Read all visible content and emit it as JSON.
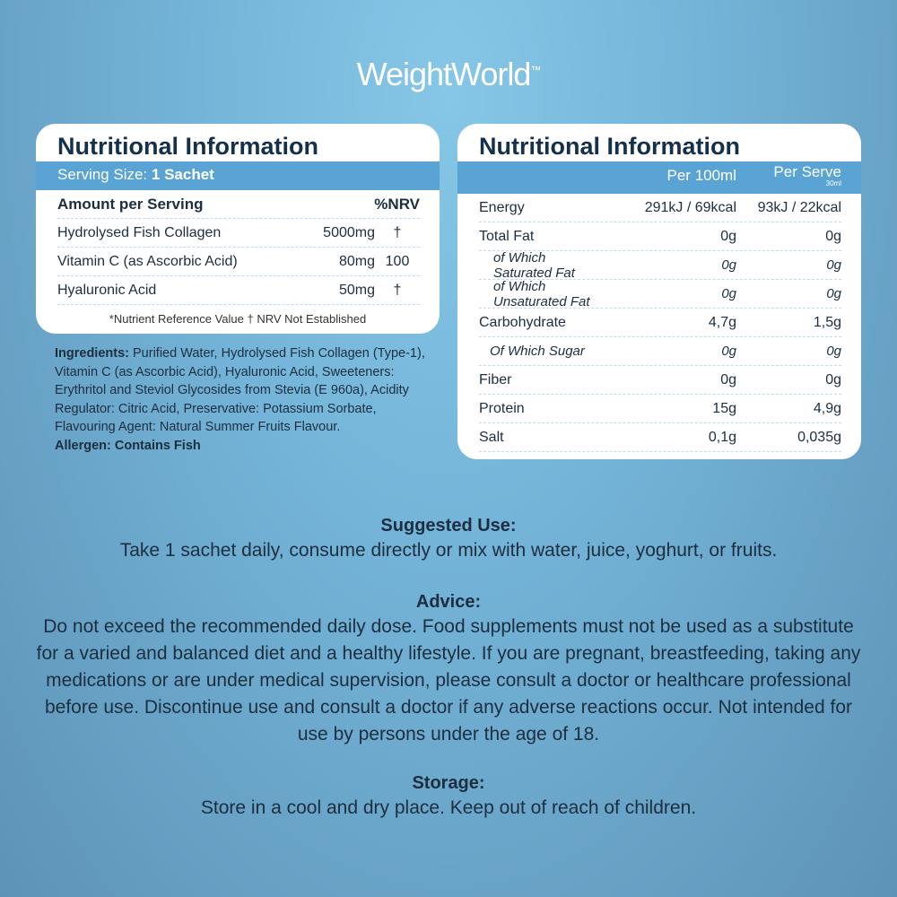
{
  "brand": {
    "name": "WeightWorld",
    "tm": "™"
  },
  "left_card": {
    "title": "Nutritional Information",
    "serving_label": "Serving Size:",
    "serving_value": "1 Sachet",
    "header": {
      "amount": "Amount per Serving",
      "nrv": "%NRV"
    },
    "rows": [
      {
        "name": "Hydrolysed Fish Collagen",
        "value": "5000mg",
        "nrv": "†"
      },
      {
        "name": "Vitamin C (as Ascorbic Acid)",
        "value": "80mg",
        "nrv": "100"
      },
      {
        "name": "Hyaluronic Acid",
        "value": "50mg",
        "nrv": "†"
      }
    ],
    "footnote": "*Nutrient Reference Value † NRV Not Established"
  },
  "right_card": {
    "title": "Nutritional Information",
    "col1": "Per 100ml",
    "col2": "Per Serve",
    "col2_sub": "30ml",
    "rows": [
      {
        "name": "Energy",
        "v1": "291kJ / 69kcal",
        "v2": "93kJ / 22kcal"
      },
      {
        "name": "Total Fat",
        "v1": "0g",
        "v2": "0g"
      },
      {
        "name": "of Which Saturated Fat",
        "v1": "0g",
        "v2": "0g"
      },
      {
        "name": "of Which Unsaturated Fat",
        "v1": "0g",
        "v2": "0g"
      },
      {
        "name": "Carbohydrate",
        "v1": "4,7g",
        "v2": "1,5g"
      },
      {
        "name": "Of Which Sugar",
        "v1": "0g",
        "v2": "0g"
      },
      {
        "name": "Fiber",
        "v1": "0g",
        "v2": "0g"
      },
      {
        "name": "Protein",
        "v1": "15g",
        "v2": "4,9g"
      },
      {
        "name": "Salt",
        "v1": "0,1g",
        "v2": "0,035g"
      }
    ]
  },
  "ingredients": {
    "label": "Ingredients:",
    "text": " Purified Water, Hydrolysed Fish Collagen (Type-1), Vitamin C (as Ascorbic Acid), Hyaluronic Acid, Sweeteners: Erythritol and Steviol Glycosides from Stevia (E 960a), Acidity Regulator: Citric Acid, Preservative: Potassium Sorbate, Flavouring Agent: Natural Summer Fruits Flavour.",
    "allergen": "Allergen: Contains Fish"
  },
  "suggested": {
    "title": "Suggested Use:",
    "text": "Take 1 sachet daily, consume directly or mix with water, juice, yoghurt, or fruits."
  },
  "advice": {
    "title": "Advice:",
    "text": "Do not exceed the recommended daily dose. Food supplements must not be used as a substitute for a varied and balanced diet and a healthy lifestyle. If you are pregnant, breastfeeding, taking any medications or are under medical supervision, please consult a doctor or healthcare professional before use. Discontinue use and consult a doctor if any adverse reactions occur. Not intended for use by persons under the age of 18."
  },
  "storage": {
    "title": "Storage:",
    "text": "Store in a cool and dry place. Keep out of reach of children."
  }
}
